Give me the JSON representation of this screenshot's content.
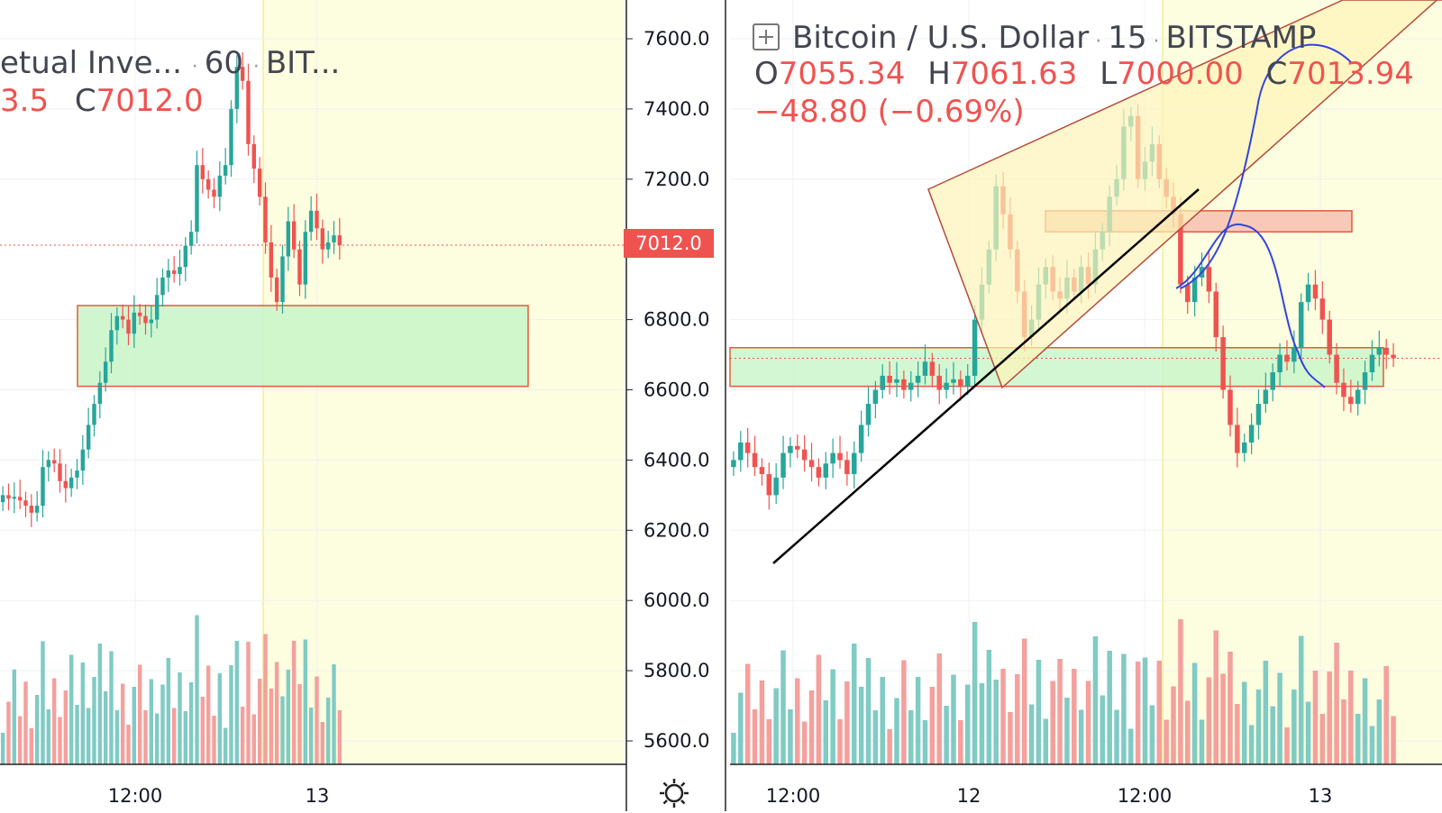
{
  "colors": {
    "up": "#26a69a",
    "down": "#ef5350",
    "volume_up": "#80cbc4",
    "volume_down": "#f4a09c",
    "session_bg": "#fdfde0",
    "support_zone": "#c8f5c8",
    "resistance_zone": "#f9c9b8",
    "zone_border": "#e35b3a",
    "trendline": "#000000",
    "projection": "#3344dd",
    "wedge_fill": "#fdf3b8",
    "wedge_border": "#b54a3c",
    "price_tag": "#ef5350"
  },
  "left_panel": {
    "legend": {
      "symbol_text": "etual Inve...",
      "interval": "60",
      "exchange": "BIT...",
      "ohlc_partial": "3.5",
      "close_label": "C",
      "close_value": "7012.0"
    },
    "price_tag": "7012.0",
    "gear_icon": "settings-icon"
  },
  "right_panel": {
    "legend": {
      "symbol": "Bitcoin / U.S. Dollar",
      "interval": "15",
      "exchange": "BITSTAMP",
      "open_label": "O",
      "open": "7055.34",
      "high_label": "H",
      "high": "7061.63",
      "low_label": "L",
      "low": "7000.00",
      "close_label": "C",
      "close": "7013.94",
      "change": "−48.80 (−0.69%)"
    }
  },
  "chart_data": [
    {
      "type": "candlestick",
      "title": "",
      "price_axis_ticks": [
        "7600.0",
        "7400.0",
        "7200.0",
        "7012.0",
        "6800.0",
        "6600.0",
        "6400.0",
        "6200.0",
        "6000.0",
        "5800.0",
        "5600.0"
      ],
      "ylim": [
        5540,
        7640
      ],
      "time_axis_ticks": [
        "12:00",
        "13"
      ],
      "last_price": 7012.0,
      "support_zone": [
        6610,
        6840
      ],
      "candles_close": [
        6300,
        6290,
        6295,
        6285,
        6270,
        6250,
        6270,
        6380,
        6400,
        6390,
        6340,
        6320,
        6350,
        6370,
        6430,
        6500,
        6560,
        6620,
        6680,
        6770,
        6810,
        6800,
        6760,
        6820,
        6810,
        6790,
        6800,
        6870,
        6920,
        6940,
        6930,
        6950,
        7010,
        7050,
        7240,
        7200,
        7170,
        7150,
        7210,
        7240,
        7400,
        7520,
        7480,
        7300,
        7230,
        7150,
        7020,
        6920,
        6850,
        6980,
        7080,
        7000,
        6900,
        7050,
        7110,
        7060,
        7000,
        7020,
        7040,
        7012
      ]
    },
    {
      "type": "candlestick",
      "title": "",
      "time_axis_ticks": [
        "12:00",
        "12",
        "12:00",
        "13"
      ],
      "ylim": [
        5540,
        7640
      ],
      "support_zone": [
        6610,
        6720
      ],
      "resistance_zone": [
        7050,
        7110
      ],
      "candles_close": [
        6400,
        6450,
        6420,
        6380,
        6360,
        6300,
        6350,
        6420,
        6440,
        6430,
        6400,
        6380,
        6350,
        6390,
        6420,
        6400,
        6360,
        6420,
        6500,
        6560,
        6600,
        6640,
        6620,
        6630,
        6600,
        6620,
        6640,
        6680,
        6640,
        6600,
        6620,
        6630,
        6610,
        6640,
        6800,
        6900,
        7000,
        7180,
        7100,
        7000,
        6880,
        6750,
        6800,
        6900,
        6950,
        6880,
        6860,
        6920,
        6880,
        6950,
        6900,
        7000,
        7050,
        7150,
        7200,
        7350,
        7380,
        7200,
        7250,
        7300,
        7200,
        7150,
        7100,
        6900,
        6850,
        6920,
        6950,
        6880,
        6750,
        6600,
        6500,
        6420,
        6450,
        6500,
        6560,
        6600,
        6650,
        6700,
        6680,
        6720,
        6850,
        6900,
        6860,
        6800,
        6700,
        6620,
        6580,
        6560,
        6600,
        6650,
        6700,
        6720,
        6700,
        6690
      ]
    }
  ]
}
